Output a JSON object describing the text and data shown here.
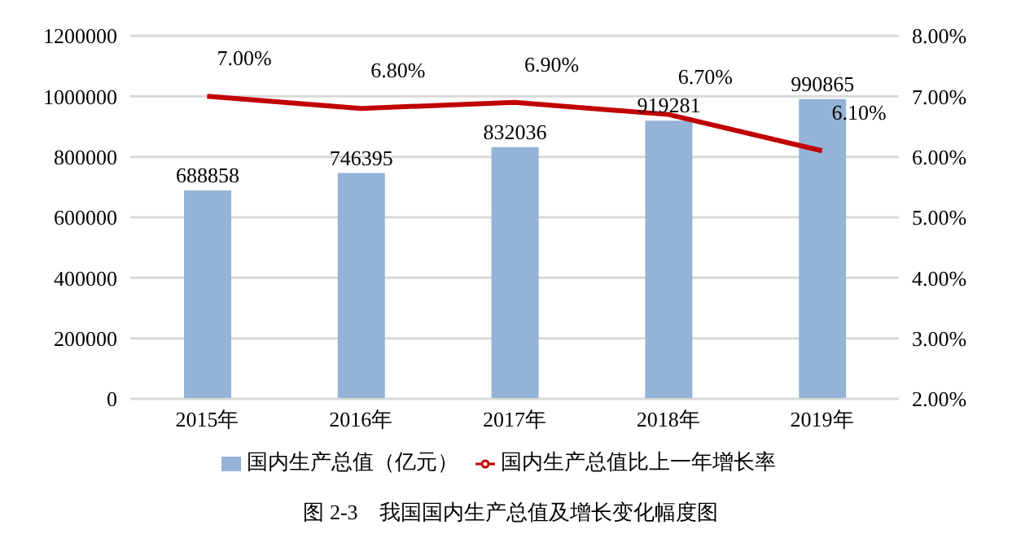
{
  "chart_data": {
    "type": "bar",
    "categories": [
      "2015年",
      "2016年",
      "2017年",
      "2018年",
      "2019年"
    ],
    "series": [
      {
        "name": "国内生产总值（亿元）",
        "color": "#95b3d7",
        "values": [
          688858,
          746395,
          832036,
          919281,
          990865
        ],
        "value_labels": [
          "688858",
          "746395",
          "832036",
          "919281",
          "990865"
        ]
      },
      {
        "name": "国内生产总值比上一年增长率",
        "type": "line",
        "axis": "y2",
        "color": "#c00000",
        "values": [
          7.0,
          6.8,
          6.9,
          6.7,
          6.1
        ],
        "value_labels": [
          "7.00%",
          "6.80%",
          "6.90%",
          "6.70%",
          "6.10%"
        ]
      }
    ],
    "ylim": [
      0,
      1200000
    ],
    "yticks": [
      0,
      200000,
      400000,
      600000,
      800000,
      1000000,
      1200000
    ],
    "y2lim": [
      2,
      8
    ],
    "y2ticks": [
      {
        "value": 2,
        "label": "2.00%"
      },
      {
        "value": 3,
        "label": "3.00%"
      },
      {
        "value": 4,
        "label": "4.00%"
      },
      {
        "value": 5,
        "label": "5.00%"
      },
      {
        "value": 6,
        "label": "6.00%"
      },
      {
        "value": 7,
        "label": "7.00%"
      },
      {
        "value": 8,
        "label": "8.00%"
      }
    ],
    "grid": "y",
    "legend": "bottom",
    "marker": "none",
    "annotations": [
      "图 2-3　我国国内生产总值及增长变化幅度图"
    ]
  }
}
